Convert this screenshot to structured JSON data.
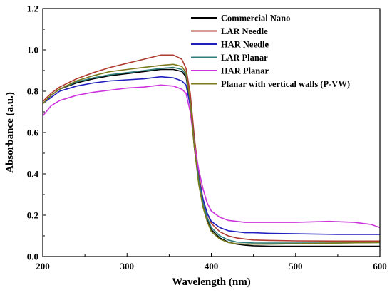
{
  "chart_data": {
    "type": "line",
    "title": "",
    "xlabel": "Wavelength (nm)",
    "ylabel": "Absorbance (a.u.)",
    "xlim": [
      200,
      600
    ],
    "ylim": [
      0.0,
      1.2
    ],
    "x_ticks": [
      "200",
      "300",
      "400",
      "500",
      "600"
    ],
    "y_ticks": [
      "0.0",
      "0.2",
      "0.4",
      "0.6",
      "0.8",
      "1.0",
      "1.2"
    ],
    "grid": false,
    "legend_position": "top-right",
    "series": [
      {
        "name": "Commercial Nano",
        "color": "#000000",
        "x": [
          200,
          210,
          220,
          240,
          260,
          280,
          300,
          320,
          340,
          355,
          365,
          370,
          375,
          380,
          385,
          390,
          395,
          400,
          410,
          420,
          430,
          440,
          450,
          470,
          500,
          550,
          600
        ],
        "y": [
          0.74,
          0.78,
          0.81,
          0.84,
          0.86,
          0.875,
          0.885,
          0.895,
          0.905,
          0.905,
          0.895,
          0.87,
          0.74,
          0.52,
          0.36,
          0.25,
          0.18,
          0.13,
          0.09,
          0.07,
          0.06,
          0.055,
          0.052,
          0.05,
          0.05,
          0.05,
          0.05
        ]
      },
      {
        "name": "LAR Needle",
        "color": "#b03a2e",
        "x": [
          200,
          210,
          220,
          240,
          260,
          280,
          300,
          320,
          340,
          355,
          365,
          370,
          375,
          380,
          385,
          390,
          395,
          400,
          410,
          420,
          430,
          440,
          450,
          470,
          500,
          550,
          600
        ],
        "y": [
          0.75,
          0.79,
          0.82,
          0.86,
          0.89,
          0.915,
          0.935,
          0.955,
          0.975,
          0.975,
          0.955,
          0.91,
          0.79,
          0.57,
          0.4,
          0.28,
          0.21,
          0.16,
          0.12,
          0.1,
          0.09,
          0.085,
          0.08,
          0.078,
          0.076,
          0.075,
          0.075
        ]
      },
      {
        "name": "HAR Needle",
        "color": "#1f1fbf",
        "x": [
          200,
          210,
          220,
          240,
          260,
          280,
          300,
          320,
          340,
          355,
          365,
          370,
          375,
          380,
          385,
          390,
          395,
          400,
          410,
          420,
          430,
          440,
          450,
          470,
          500,
          550,
          600
        ],
        "y": [
          0.74,
          0.77,
          0.8,
          0.825,
          0.84,
          0.85,
          0.855,
          0.86,
          0.87,
          0.865,
          0.85,
          0.83,
          0.73,
          0.54,
          0.38,
          0.28,
          0.21,
          0.17,
          0.14,
          0.125,
          0.12,
          0.115,
          0.115,
          0.112,
          0.11,
          0.107,
          0.107
        ]
      },
      {
        "name": "LAR Planar",
        "color": "#2e7d7d",
        "x": [
          200,
          210,
          220,
          240,
          260,
          280,
          300,
          320,
          340,
          355,
          365,
          370,
          375,
          380,
          385,
          390,
          395,
          400,
          410,
          420,
          430,
          440,
          450,
          470,
          500,
          550,
          600
        ],
        "y": [
          0.74,
          0.78,
          0.81,
          0.845,
          0.865,
          0.88,
          0.89,
          0.9,
          0.91,
          0.915,
          0.905,
          0.88,
          0.75,
          0.53,
          0.37,
          0.26,
          0.19,
          0.14,
          0.1,
          0.08,
          0.07,
          0.068,
          0.066,
          0.065,
          0.065,
          0.066,
          0.068
        ]
      },
      {
        "name": "HAR Planar",
        "color": "#cc33dd",
        "x": [
          200,
          210,
          220,
          240,
          260,
          280,
          300,
          320,
          340,
          355,
          365,
          370,
          375,
          380,
          385,
          390,
          395,
          400,
          410,
          420,
          430,
          440,
          450,
          470,
          500,
          540,
          570,
          590,
          600
        ],
        "y": [
          0.68,
          0.73,
          0.755,
          0.78,
          0.795,
          0.805,
          0.815,
          0.82,
          0.83,
          0.825,
          0.81,
          0.79,
          0.7,
          0.54,
          0.42,
          0.33,
          0.26,
          0.22,
          0.19,
          0.175,
          0.17,
          0.165,
          0.165,
          0.165,
          0.165,
          0.17,
          0.165,
          0.155,
          0.14
        ]
      },
      {
        "name": "Planar with vertical walls (P-VW)",
        "color": "#7a7a1a",
        "x": [
          200,
          210,
          220,
          240,
          260,
          280,
          300,
          320,
          340,
          355,
          365,
          370,
          375,
          380,
          385,
          390,
          395,
          400,
          410,
          420,
          430,
          440,
          450,
          470,
          500,
          550,
          600
        ],
        "y": [
          0.74,
          0.78,
          0.81,
          0.85,
          0.875,
          0.895,
          0.905,
          0.915,
          0.925,
          0.93,
          0.92,
          0.89,
          0.75,
          0.52,
          0.35,
          0.24,
          0.17,
          0.12,
          0.085,
          0.068,
          0.062,
          0.06,
          0.06,
          0.06,
          0.062,
          0.065,
          0.068
        ]
      }
    ]
  }
}
